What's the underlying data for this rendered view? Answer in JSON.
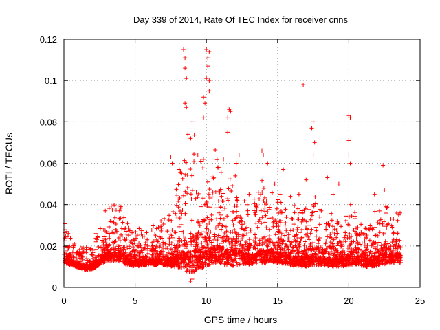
{
  "chart_data": {
    "type": "scatter",
    "title": "Day 339 of 2014, Rate Of TEC Index for receiver cnns",
    "xlabel": "GPS time / hours",
    "ylabel": "ROTI / TECUs",
    "xlim": [
      0,
      25
    ],
    "ylim": [
      0,
      0.12
    ],
    "x_ticks": [
      0,
      5,
      10,
      15,
      20,
      25
    ],
    "y_ticks": [
      0,
      0.02,
      0.04,
      0.06,
      0.08,
      0.1,
      0.12
    ],
    "x_tick_labels": [
      "0",
      "5",
      "10",
      "15",
      "20",
      "25"
    ],
    "y_tick_labels": [
      "0",
      "0.02",
      "0.04",
      "0.06",
      "0.08",
      "0.1",
      "0.12"
    ],
    "grid": true,
    "marker": "+",
    "series": [
      {
        "name": "ROTI",
        "color": "#ff0000",
        "envelope": {
          "x": [
            0,
            0.5,
            1,
            1.5,
            2,
            2.5,
            3,
            3.5,
            4,
            4.5,
            5,
            5.5,
            6,
            6.5,
            7,
            7.5,
            8,
            8.5,
            9,
            9.5,
            10,
            10.5,
            11,
            11.5,
            12,
            12.5,
            13,
            13.5,
            14,
            14.5,
            15,
            15.5,
            16,
            16.5,
            17,
            17.5,
            18,
            18.5,
            19,
            19.5,
            20,
            20.5,
            21,
            21.5,
            22,
            22.5,
            23,
            23.5
          ],
          "base": [
            0.015,
            0.013,
            0.011,
            0.01,
            0.011,
            0.014,
            0.017,
            0.017,
            0.017,
            0.014,
            0.013,
            0.013,
            0.014,
            0.014,
            0.014,
            0.014,
            0.016,
            0.017,
            0.018,
            0.019,
            0.02,
            0.02,
            0.019,
            0.019,
            0.018,
            0.017,
            0.016,
            0.017,
            0.018,
            0.018,
            0.017,
            0.016,
            0.015,
            0.015,
            0.015,
            0.016,
            0.015,
            0.014,
            0.014,
            0.014,
            0.015,
            0.015,
            0.014,
            0.013,
            0.015,
            0.016,
            0.016,
            0.016
          ],
          "spread": [
            0.006,
            0.004,
            0.003,
            0.003,
            0.004,
            0.006,
            0.008,
            0.008,
            0.009,
            0.006,
            0.005,
            0.005,
            0.005,
            0.006,
            0.006,
            0.007,
            0.012,
            0.018,
            0.02,
            0.018,
            0.018,
            0.016,
            0.014,
            0.015,
            0.014,
            0.01,
            0.009,
            0.01,
            0.012,
            0.011,
            0.01,
            0.008,
            0.009,
            0.009,
            0.009,
            0.01,
            0.008,
            0.008,
            0.007,
            0.007,
            0.008,
            0.007,
            0.007,
            0.006,
            0.008,
            0.009,
            0.008,
            0.008
          ]
        },
        "peaks": [
          {
            "x": 8.4,
            "y": 0.115
          },
          {
            "x": 8.5,
            "y": 0.111
          },
          {
            "x": 8.5,
            "y": 0.106
          },
          {
            "x": 8.6,
            "y": 0.101
          },
          {
            "x": 8.5,
            "y": 0.089
          },
          {
            "x": 8.6,
            "y": 0.087
          },
          {
            "x": 10.0,
            "y": 0.115
          },
          {
            "x": 10.2,
            "y": 0.114
          },
          {
            "x": 10.1,
            "y": 0.111
          },
          {
            "x": 10.1,
            "y": 0.107
          },
          {
            "x": 10.0,
            "y": 0.101
          },
          {
            "x": 10.2,
            "y": 0.1
          },
          {
            "x": 10.2,
            "y": 0.095
          },
          {
            "x": 9.8,
            "y": 0.092
          },
          {
            "x": 9.9,
            "y": 0.089
          },
          {
            "x": 9.8,
            "y": 0.082
          },
          {
            "x": 11.6,
            "y": 0.086
          },
          {
            "x": 11.7,
            "y": 0.085
          },
          {
            "x": 11.5,
            "y": 0.082
          },
          {
            "x": 11.5,
            "y": 0.075
          },
          {
            "x": 9.0,
            "y": 0.08
          },
          {
            "x": 8.7,
            "y": 0.074
          },
          {
            "x": 8.9,
            "y": 0.072
          },
          {
            "x": 16.8,
            "y": 0.098
          },
          {
            "x": 17.5,
            "y": 0.08
          },
          {
            "x": 17.4,
            "y": 0.077
          },
          {
            "x": 17.6,
            "y": 0.07
          },
          {
            "x": 17.5,
            "y": 0.064
          },
          {
            "x": 20.0,
            "y": 0.083
          },
          {
            "x": 20.1,
            "y": 0.082
          },
          {
            "x": 20.0,
            "y": 0.071
          },
          {
            "x": 20.0,
            "y": 0.064
          },
          {
            "x": 20.1,
            "y": 0.06
          },
          {
            "x": 22.4,
            "y": 0.059
          },
          {
            "x": 22.5,
            "y": 0.047
          },
          {
            "x": 15.4,
            "y": 0.057
          },
          {
            "x": 13.9,
            "y": 0.066
          },
          {
            "x": 14.0,
            "y": 0.064
          },
          {
            "x": 14.3,
            "y": 0.06
          },
          {
            "x": 12.3,
            "y": 0.064
          },
          {
            "x": 12.1,
            "y": 0.06
          },
          {
            "x": 11.2,
            "y": 0.062
          },
          {
            "x": 7.5,
            "y": 0.063
          },
          {
            "x": 7.6,
            "y": 0.06
          },
          {
            "x": 8.1,
            "y": 0.057
          },
          {
            "x": 9.4,
            "y": 0.064
          },
          {
            "x": 9.6,
            "y": 0.061
          },
          {
            "x": 10.8,
            "y": 0.058
          },
          {
            "x": 16.5,
            "y": 0.045
          },
          {
            "x": 17.0,
            "y": 0.052
          },
          {
            "x": 18.5,
            "y": 0.053
          },
          {
            "x": 19.3,
            "y": 0.05
          },
          {
            "x": 21.8,
            "y": 0.045
          },
          {
            "x": 23.6,
            "y": 0.036
          },
          {
            "x": 23.5,
            "y": 0.035
          },
          {
            "x": 4.0,
            "y": 0.039
          },
          {
            "x": 3.9,
            "y": 0.037
          },
          {
            "x": 0.2,
            "y": 0.027
          },
          {
            "x": 0.3,
            "y": 0.026
          },
          {
            "x": 8.9,
            "y": 0.003
          },
          {
            "x": 9.0,
            "y": 0.004
          },
          {
            "x": 13.0,
            "y": 0.045
          },
          {
            "x": 14.8,
            "y": 0.05
          },
          {
            "x": 15.9,
            "y": 0.044
          },
          {
            "x": 18.9,
            "y": 0.045
          }
        ]
      }
    ]
  }
}
